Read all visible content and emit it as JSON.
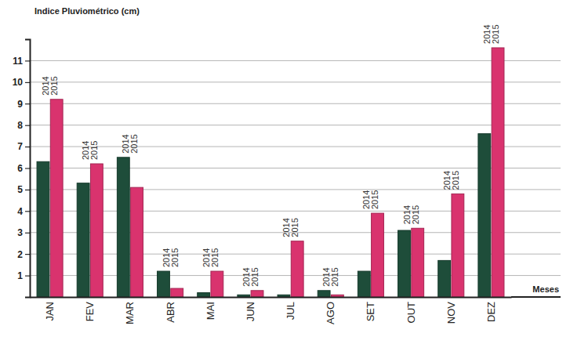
{
  "chart_data": {
    "type": "bar",
    "y_label": "Indice Pluviométrico (cm)",
    "x_label": "Meses",
    "categories": [
      "JAN",
      "FEV",
      "MAR",
      "ABR",
      "MAI",
      "JUN",
      "JUL",
      "AGO",
      "SET",
      "OUT",
      "NOV",
      "DEZ"
    ],
    "series": [
      {
        "name": "2014",
        "color": "#1e4d3a",
        "values": [
          6.3,
          5.3,
          6.5,
          1.2,
          0.2,
          0.1,
          0.1,
          0.3,
          1.2,
          3.1,
          1.7,
          7.6
        ]
      },
      {
        "name": "2015",
        "color": "#d9336e",
        "values": [
          9.2,
          6.2,
          5.1,
          0.4,
          1.2,
          0.3,
          2.6,
          0.1,
          3.9,
          3.2,
          4.8,
          11.6
        ]
      }
    ],
    "ylim": [
      0,
      12
    ],
    "yticks": [
      1,
      2,
      3,
      4,
      5,
      6,
      7,
      8,
      9,
      10,
      11
    ],
    "grid": true
  }
}
